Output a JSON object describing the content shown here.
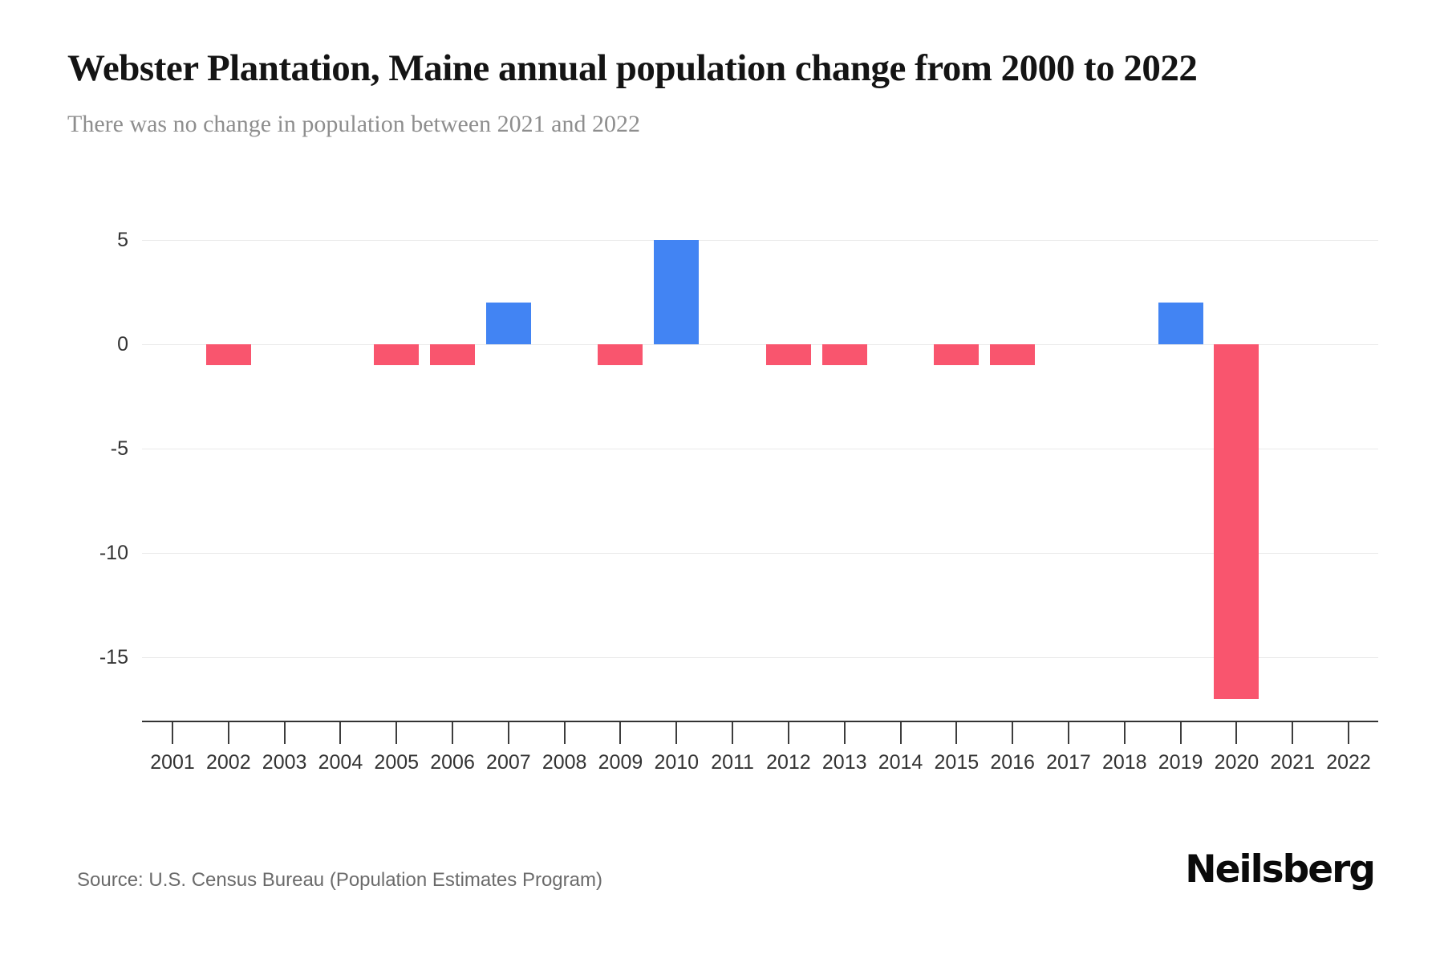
{
  "header": {
    "title": "Webster Plantation, Maine annual population change from 2000 to 2022",
    "subtitle": "There was no change in population between 2021 and 2022"
  },
  "chart_data": {
    "type": "bar",
    "title": "Webster Plantation, Maine annual population change from 2000 to 2022",
    "subtitle": "There was no change in population between 2021 and 2022",
    "xlabel": "",
    "ylabel": "",
    "categories": [
      "2001",
      "2002",
      "2003",
      "2004",
      "2005",
      "2006",
      "2007",
      "2008",
      "2009",
      "2010",
      "2011",
      "2012",
      "2013",
      "2014",
      "2015",
      "2016",
      "2017",
      "2018",
      "2019",
      "2020",
      "2021",
      "2022"
    ],
    "values": [
      0,
      -1,
      0,
      0,
      -1,
      -1,
      2,
      0,
      -1,
      5,
      0,
      -1,
      -1,
      0,
      -1,
      -1,
      0,
      0,
      2,
      -17,
      0,
      0
    ],
    "y_ticks": [
      5,
      0,
      -5,
      -10,
      -15
    ],
    "ylim": [
      -18,
      7
    ],
    "grid": "horizontal",
    "legend": false,
    "positive_color": "#4284F3",
    "negative_color": "#F9556E"
  },
  "footer": {
    "source": "Source: U.S. Census Bureau (Population Estimates Program)",
    "brand": "Neilsberg"
  }
}
